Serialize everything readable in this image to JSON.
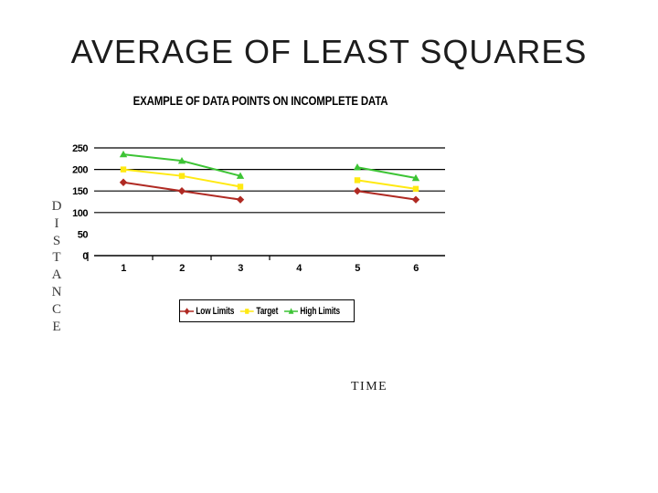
{
  "slide": {
    "title": "AVERAGE OF LEAST SQUARES"
  },
  "chart_data": {
    "type": "line",
    "title": "EXAMPLE OF DATA POINTS ON INCOMPLETE DATA",
    "xlabel": "TIME",
    "ylabel": "DISTANCE",
    "categories": [
      "1",
      "2",
      "3",
      "4",
      "5",
      "6"
    ],
    "series": [
      {
        "name": "Low Limits",
        "color": "#B02A23",
        "marker": "diamond",
        "values": [
          170,
          150,
          130,
          null,
          150,
          130
        ]
      },
      {
        "name": "Target",
        "color": "#FFE912",
        "marker": "square",
        "values": [
          200,
          185,
          160,
          null,
          175,
          155
        ]
      },
      {
        "name": "High Limits",
        "color": "#3DC435",
        "marker": "triangle",
        "values": [
          235,
          220,
          185,
          null,
          205,
          180
        ]
      }
    ],
    "y_ticks": [
      250,
      200,
      150,
      100,
      50,
      0
    ],
    "gridline_values": [
      250,
      200,
      150,
      100
    ],
    "x_tick_boundaries": [
      1,
      2,
      3
    ],
    "ylim": [
      0,
      260
    ],
    "grid": true,
    "legend_position": "bottom",
    "note": "no data at category 4 (incomplete data); no gridline at 50"
  }
}
